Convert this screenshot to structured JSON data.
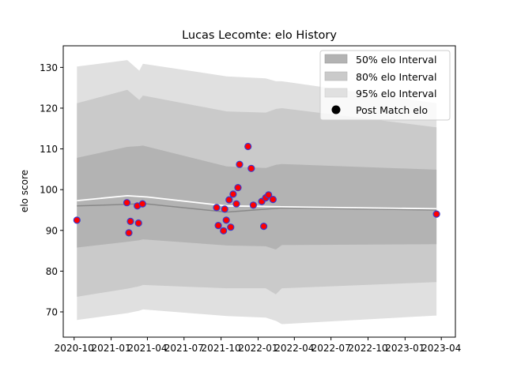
{
  "chart_data": {
    "type": "area",
    "title": "Lucas Lecomte: elo History",
    "ylabel": "elo score",
    "xlabel": "",
    "xlim": [
      "2020-09-04",
      "2023-05-06"
    ],
    "ylim": [
      63.8,
      135.3
    ],
    "x_ticks": [
      {
        "date": "2020-10-01",
        "label": "2020-10"
      },
      {
        "date": "2021-01-01",
        "label": "2021-01"
      },
      {
        "date": "2021-04-01",
        "label": "2021-04"
      },
      {
        "date": "2021-07-01",
        "label": "2021-07"
      },
      {
        "date": "2021-10-01",
        "label": "2021-10"
      },
      {
        "date": "2022-01-01",
        "label": "2022-01"
      },
      {
        "date": "2022-04-01",
        "label": "2022-04"
      },
      {
        "date": "2022-07-01",
        "label": "2022-07"
      },
      {
        "date": "2022-10-01",
        "label": "2022-10"
      },
      {
        "date": "2023-01-01",
        "label": "2023-01"
      },
      {
        "date": "2023-04-01",
        "label": "2023-04"
      }
    ],
    "y_ticks": [
      70,
      80,
      90,
      100,
      110,
      120,
      130
    ],
    "grid": false,
    "legend_placement": "top-right",
    "legend": [
      {
        "label": "50% elo Interval",
        "kind": "patch",
        "color": "#b3b3b3"
      },
      {
        "label": "80% elo Interval",
        "kind": "patch",
        "color": "#cacaca"
      },
      {
        "label": "95% elo Interval",
        "kind": "patch",
        "color": "#e0e0e0"
      },
      {
        "label": "Post Match elo",
        "kind": "marker",
        "color": "#000000"
      }
    ],
    "colors": {
      "band_50": "#b3b3b3",
      "band_80": "#cacaca",
      "band_95": "#e0e0e0",
      "mean_line": "#ffffff",
      "median_line": "#888888",
      "marker_fill": "#ff0000",
      "marker_edge": "#3a3acc"
    },
    "bands": [
      {
        "date": "2020-10-08",
        "lo95": 68.0,
        "lo80": 73.7,
        "lo50": 85.8,
        "hi50": 107.8,
        "hi80": 121.2,
        "hi95": 130.2
      },
      {
        "date": "2021-02-10",
        "lo95": 69.7,
        "lo80": 75.7,
        "lo50": 87.2,
        "hi50": 110.5,
        "hi80": 124.5,
        "hi95": 131.8
      },
      {
        "date": "2021-03-12",
        "lo95": 70.3,
        "lo80": 76.3,
        "lo50": 87.6,
        "hi50": 110.7,
        "hi80": 122.0,
        "hi95": 129.2
      },
      {
        "date": "2021-03-21",
        "lo95": 70.6,
        "lo80": 76.6,
        "lo50": 87.8,
        "hi50": 110.8,
        "hi80": 123.1,
        "hi95": 130.9
      },
      {
        "date": "2021-10-15",
        "lo95": 69.0,
        "lo80": 75.8,
        "lo50": 86.3,
        "hi50": 105.7,
        "hi80": 119.2,
        "hi95": 127.8
      },
      {
        "date": "2022-01-20",
        "lo95": 68.6,
        "lo80": 75.8,
        "lo50": 86.1,
        "hi50": 105.3,
        "hi80": 118.9,
        "hi95": 127.3
      },
      {
        "date": "2022-02-14",
        "lo95": 67.8,
        "lo80": 74.3,
        "lo50": 85.3,
        "hi50": 106.1,
        "hi80": 119.8,
        "hi95": 126.6
      },
      {
        "date": "2022-03-01",
        "lo95": 67.0,
        "lo80": 75.8,
        "lo50": 86.4,
        "hi50": 106.3,
        "hi80": 120.0,
        "hi95": 126.6
      },
      {
        "date": "2023-03-20",
        "lo95": 69.1,
        "lo80": 77.3,
        "lo50": 86.6,
        "hi50": 104.9,
        "hi80": 115.3,
        "hi95": 121.2
      }
    ],
    "mean_series": {
      "dates": [
        "2020-10-08",
        "2021-02-10",
        "2021-04-01",
        "2021-10-15",
        "2022-01-01",
        "2022-03-01",
        "2023-03-20"
      ],
      "values": [
        97.3,
        98.5,
        98.2,
        96.0,
        95.9,
        95.8,
        95.3
      ]
    },
    "median_series": {
      "dates": [
        "2020-10-08",
        "2021-02-10",
        "2021-03-21",
        "2021-10-15",
        "2022-01-20",
        "2022-03-01",
        "2023-03-20"
      ],
      "values": [
        96.0,
        96.4,
        96.6,
        94.5,
        95.2,
        95.5,
        95.0
      ]
    },
    "points": [
      {
        "date": "2020-10-08",
        "elo": 92.5
      },
      {
        "date": "2021-02-09",
        "elo": 96.8
      },
      {
        "date": "2021-02-14",
        "elo": 89.4
      },
      {
        "date": "2021-02-18",
        "elo": 92.2
      },
      {
        "date": "2021-03-07",
        "elo": 96.0
      },
      {
        "date": "2021-03-10",
        "elo": 91.8
      },
      {
        "date": "2021-03-20",
        "elo": 96.5
      },
      {
        "date": "2021-09-20",
        "elo": 95.6
      },
      {
        "date": "2021-09-24",
        "elo": 91.2
      },
      {
        "date": "2021-10-07",
        "elo": 89.9
      },
      {
        "date": "2021-10-10",
        "elo": 95.2
      },
      {
        "date": "2021-10-14",
        "elo": 92.5
      },
      {
        "date": "2021-10-21",
        "elo": 97.5
      },
      {
        "date": "2021-10-25",
        "elo": 90.8
      },
      {
        "date": "2021-10-31",
        "elo": 98.9
      },
      {
        "date": "2021-11-08",
        "elo": 96.5
      },
      {
        "date": "2021-11-12",
        "elo": 100.5
      },
      {
        "date": "2021-11-16",
        "elo": 106.2
      },
      {
        "date": "2021-12-07",
        "elo": 110.6
      },
      {
        "date": "2021-12-15",
        "elo": 105.2
      },
      {
        "date": "2021-12-20",
        "elo": 96.2
      },
      {
        "date": "2022-01-10",
        "elo": 97.1
      },
      {
        "date": "2022-01-15",
        "elo": 91.0
      },
      {
        "date": "2022-01-20",
        "elo": 98.0
      },
      {
        "date": "2022-01-27",
        "elo": 98.7
      },
      {
        "date": "2022-02-07",
        "elo": 97.6
      },
      {
        "date": "2023-03-20",
        "elo": 94.0
      }
    ]
  }
}
